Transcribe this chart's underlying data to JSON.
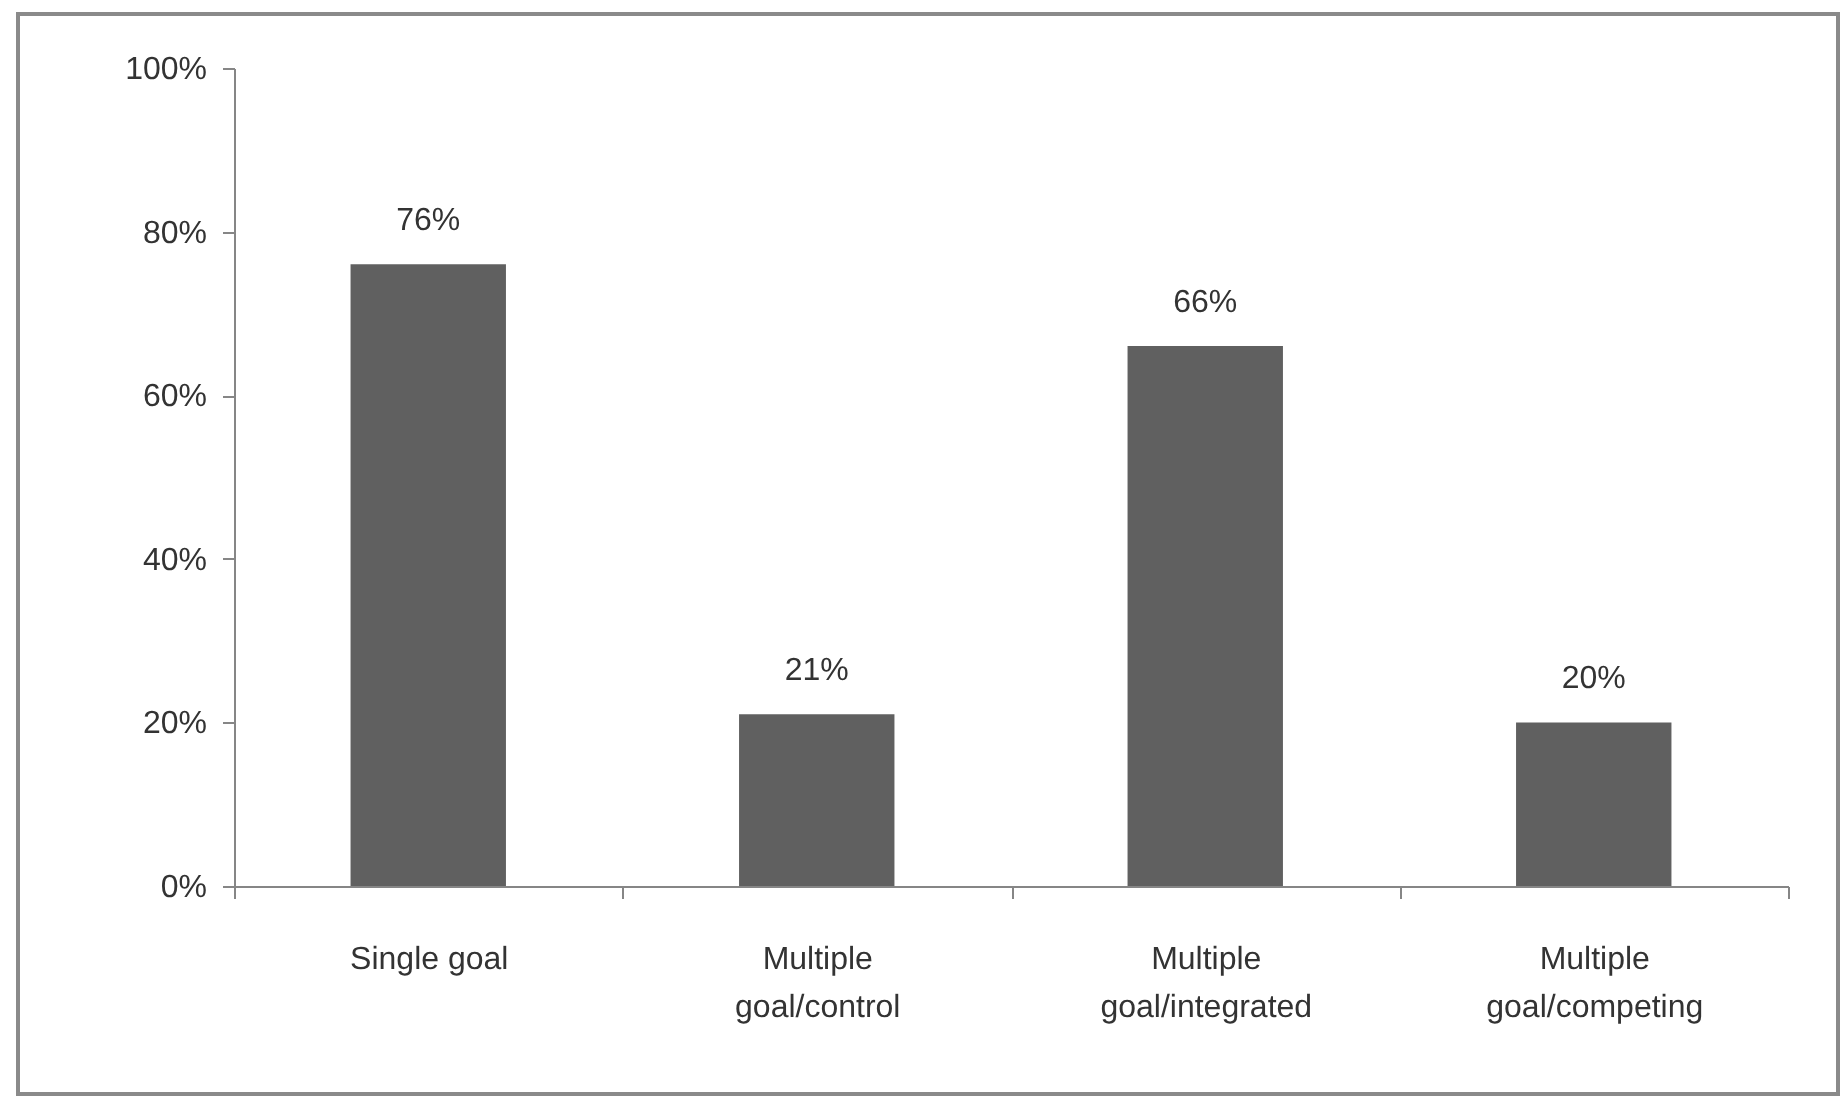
{
  "chart_data": {
    "type": "bar",
    "categories": [
      "Single goal",
      "Multiple goal/control",
      "Multiple goal/integrated",
      "Multiple goal/competing"
    ],
    "values": [
      76,
      21,
      66,
      20
    ],
    "value_labels": [
      "76%",
      "21%",
      "66%",
      "20%"
    ],
    "color": "#606060",
    "ylim": [
      0,
      100
    ],
    "yticks": [
      {
        "value": 0,
        "label": "0%"
      },
      {
        "value": 20,
        "label": "20%"
      },
      {
        "value": 40,
        "label": "40%"
      },
      {
        "value": 60,
        "label": "60%"
      },
      {
        "value": 80,
        "label": "80%"
      },
      {
        "value": 100,
        "label": "100%"
      }
    ]
  }
}
